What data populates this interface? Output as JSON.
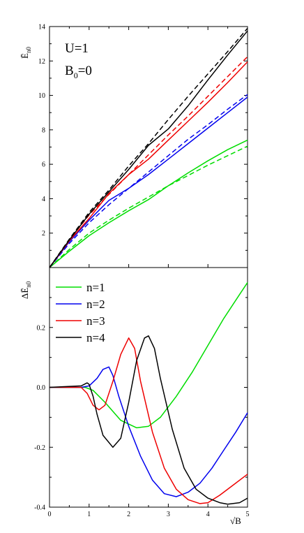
{
  "colors": {
    "n1": "#00dd00",
    "n2": "#0000ee",
    "n3": "#ee0000",
    "n4": "#000000"
  },
  "chart_data": [
    {
      "type": "line",
      "ylabel": "Ē",
      "ylabel_sub": "n0",
      "annotations": [
        "U=1",
        "B",
        "0",
        "=0"
      ],
      "xlim": [
        0,
        5
      ],
      "ylim": [
        0,
        14
      ],
      "yticks": [
        "2",
        "4",
        "6",
        "8",
        "10",
        "12",
        "14"
      ],
      "series": [
        {
          "key": "n1_solid",
          "color": "n1",
          "style": "solid",
          "x": [
            0,
            0.5,
            1,
            1.5,
            2,
            2.5,
            3,
            3.5,
            4,
            4.5,
            5
          ],
          "y": [
            0,
            0.95,
            1.85,
            2.6,
            3.3,
            3.95,
            4.75,
            5.5,
            6.2,
            6.85,
            7.4
          ]
        },
        {
          "key": "n1_dashed",
          "color": "n1",
          "style": "dashed",
          "x": [
            0,
            0.5,
            1,
            1.5,
            2,
            2.5,
            3,
            3.5,
            4,
            4.5,
            5
          ],
          "y": [
            0,
            1.05,
            2.0,
            2.75,
            3.45,
            4.1,
            4.75,
            5.35,
            5.95,
            6.5,
            7.05
          ]
        },
        {
          "key": "n2_solid",
          "color": "n2",
          "style": "solid",
          "x": [
            0,
            0.5,
            1,
            1.5,
            2,
            2.5,
            3,
            3.5,
            4,
            4.5,
            5
          ],
          "y": [
            0,
            1.5,
            2.75,
            3.9,
            4.6,
            5.4,
            6.3,
            7.2,
            8.1,
            9.0,
            9.9
          ]
        },
        {
          "key": "n2_dashed",
          "color": "n2",
          "style": "dashed",
          "x": [
            0,
            0.5,
            1,
            1.5,
            2,
            2.5,
            3,
            3.5,
            4,
            4.5,
            5
          ],
          "y": [
            0,
            1.4,
            2.6,
            3.65,
            4.6,
            5.55,
            6.5,
            7.45,
            8.3,
            9.2,
            10.05
          ]
        },
        {
          "key": "n3_solid",
          "color": "n3",
          "style": "solid",
          "x": [
            0,
            0.5,
            1,
            1.5,
            2,
            2.5,
            3,
            3.5,
            4,
            4.5,
            5
          ],
          "y": [
            0,
            1.55,
            2.85,
            4.3,
            5.4,
            6.3,
            7.4,
            8.5,
            9.6,
            10.75,
            11.95
          ]
        },
        {
          "key": "n3_dashed",
          "color": "n3",
          "style": "dashed",
          "x": [
            0,
            0.5,
            1,
            1.5,
            2,
            2.5,
            3,
            3.5,
            4,
            4.5,
            5
          ],
          "y": [
            0,
            1.6,
            3.05,
            4.25,
            5.4,
            6.55,
            7.7,
            8.8,
            9.95,
            11.1,
            12.25
          ]
        },
        {
          "key": "n4_solid",
          "color": "n4",
          "style": "solid",
          "x": [
            0,
            0.5,
            1,
            1.5,
            2,
            2.5,
            3,
            3.5,
            4,
            4.5,
            5
          ],
          "y": [
            0,
            1.6,
            3.1,
            4.4,
            5.7,
            7.1,
            8.05,
            9.4,
            10.9,
            12.35,
            13.75
          ]
        },
        {
          "key": "n4_dashed",
          "color": "n4",
          "style": "dashed",
          "x": [
            0,
            0.5,
            1,
            1.5,
            2,
            2.5,
            3,
            3.5,
            4,
            4.5,
            5
          ],
          "y": [
            0,
            1.65,
            3.2,
            4.5,
            5.9,
            7.2,
            8.6,
            9.95,
            11.25,
            12.55,
            13.9
          ]
        }
      ]
    },
    {
      "type": "line",
      "ylabel": "ΔĒ",
      "ylabel_sub": "n0",
      "xlabel": "√B",
      "xlim": [
        0,
        5
      ],
      "ylim": [
        -0.4,
        0.4
      ],
      "xticks": [
        "0",
        "1",
        "2",
        "3",
        "4",
        "5"
      ],
      "yticks": [
        "-0.4",
        "-0.2",
        "0.0",
        "0.2"
      ],
      "ytick_values": [
        -0.4,
        -0.2,
        0.0,
        0.2
      ],
      "legend": {
        "placement": "top-left",
        "entries": [
          "n=1",
          "n=2",
          "n=3",
          "n=4"
        ]
      },
      "series": [
        {
          "name": "n=1",
          "color": "n1",
          "x": [
            0,
            0.6,
            0.9,
            1.1,
            1.4,
            1.8,
            2.2,
            2.5,
            2.8,
            3.2,
            3.6,
            4.0,
            4.4,
            4.8,
            5.0
          ],
          "y": [
            0,
            0,
            0.0,
            -0.01,
            -0.05,
            -0.11,
            -0.135,
            -0.13,
            -0.1,
            -0.03,
            0.05,
            0.14,
            0.23,
            0.31,
            0.35
          ]
        },
        {
          "name": "n=2",
          "color": "n2",
          "x": [
            0,
            0.8,
            1.0,
            1.2,
            1.35,
            1.5,
            1.6,
            1.75,
            2.0,
            2.3,
            2.6,
            2.9,
            3.2,
            3.5,
            3.8,
            4.1,
            4.4,
            4.7,
            5.0
          ],
          "y": [
            0,
            0,
            0.005,
            0.03,
            0.06,
            0.068,
            0.04,
            -0.03,
            -0.13,
            -0.23,
            -0.31,
            -0.355,
            -0.365,
            -0.35,
            -0.32,
            -0.27,
            -0.21,
            -0.15,
            -0.085
          ]
        },
        {
          "name": "n=3",
          "color": "n3",
          "x": [
            0,
            0.8,
            0.95,
            1.1,
            1.25,
            1.4,
            1.6,
            1.8,
            2.0,
            2.15,
            2.3,
            2.6,
            2.9,
            3.2,
            3.5,
            3.8,
            4.0,
            4.3,
            4.6,
            5.0
          ],
          "y": [
            0,
            0,
            -0.02,
            -0.06,
            -0.075,
            -0.06,
            0.02,
            0.11,
            0.165,
            0.13,
            0.02,
            -0.15,
            -0.27,
            -0.34,
            -0.375,
            -0.388,
            -0.385,
            -0.36,
            -0.33,
            -0.29
          ]
        },
        {
          "name": "n=4",
          "color": "n4",
          "x": [
            0,
            0.8,
            0.95,
            1.0,
            1.1,
            1.2,
            1.35,
            1.6,
            1.8,
            2.0,
            2.2,
            2.4,
            2.5,
            2.65,
            2.8,
            3.1,
            3.4,
            3.7,
            4.0,
            4.3,
            4.5,
            4.8,
            5.0
          ],
          "y": [
            0,
            0.005,
            0.015,
            0.01,
            -0.03,
            -0.09,
            -0.16,
            -0.2,
            -0.17,
            -0.05,
            0.09,
            0.165,
            0.172,
            0.13,
            0.03,
            -0.14,
            -0.27,
            -0.34,
            -0.37,
            -0.385,
            -0.39,
            -0.385,
            -0.37
          ]
        }
      ]
    }
  ]
}
